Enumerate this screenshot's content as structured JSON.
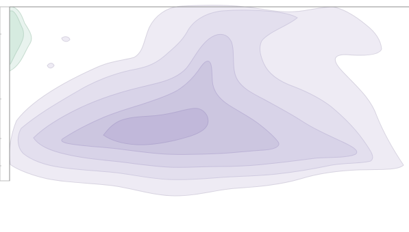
{
  "chart_data": {
    "type": "contour",
    "title": "",
    "xlabel": "",
    "ylabel": "",
    "series": [
      {
        "levels": [
          {
            "level": 1,
            "fill": "#eeebf4",
            "stroke": "#d7d3e0"
          },
          {
            "level": 2,
            "fill": "#e3dfee",
            "stroke": "#d0cbe0"
          },
          {
            "level": 3,
            "fill": "#d8d3e8",
            "stroke": "#c7c0dc"
          },
          {
            "level": 4,
            "fill": "#ccc6e0",
            "stroke": "#bcb3d6"
          },
          {
            "level": 5,
            "fill": "#c1b8da",
            "stroke": "#b3a9d0"
          }
        ]
      },
      {
        "levels": [
          {
            "level": 1,
            "fill": "#e8f3ee",
            "stroke": "#c6dccf"
          },
          {
            "level": 2,
            "fill": "#d6ebe0",
            "stroke": "#bdd8c9"
          }
        ]
      }
    ],
    "grid": false,
    "legend": "left"
  },
  "colors": {
    "background": "#ffffff",
    "frame": "#8f8f8f",
    "legend_border": "#bdbdbd"
  }
}
